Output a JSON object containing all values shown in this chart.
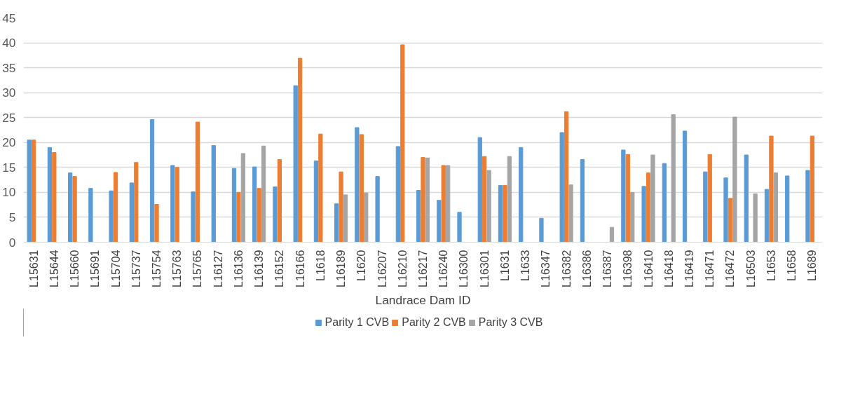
{
  "chart_data": {
    "type": "bar",
    "xlabel": "Landrace Dam ID",
    "categories": [
      "L15631",
      "L15644",
      "L15660",
      "L15691",
      "L15704",
      "L15737",
      "L15754",
      "L15763",
      "L15765",
      "L16127",
      "L16136",
      "L16139",
      "L16152",
      "L16166",
      "L1618",
      "L16189",
      "L1620",
      "L16207",
      "L16210",
      "L16217",
      "L16240",
      "L16300",
      "L16301",
      "L1631",
      "L1633",
      "L16347",
      "L16382",
      "L16386",
      "L16387",
      "L16398",
      "L16410",
      "L16418",
      "L16419",
      "L16471",
      "L16472",
      "L16503",
      "L1653",
      "L1658",
      "L1689"
    ],
    "series": [
      {
        "name": "Parity 1 CVB",
        "color": "#5b9bd5",
        "values": [
          20.5,
          19,
          13.9,
          10.8,
          10.3,
          11.9,
          24.6,
          15.4,
          10.1,
          19.4,
          14.8,
          15.1,
          11.1,
          31.4,
          16.3,
          7.7,
          23,
          13.2,
          19.2,
          10.4,
          8.4,
          6,
          21,
          11.4,
          19,
          4.8,
          22,
          16.6,
          null,
          18.5,
          11.2,
          15.8,
          22.3,
          14.1,
          12.9,
          17.5,
          10.6,
          13.3,
          14.4
        ]
      },
      {
        "name": "Parity 2 CVB",
        "color": "#ed7d31",
        "values": [
          20.5,
          18,
          13.2,
          null,
          14,
          16,
          7.6,
          15,
          24.1,
          null,
          10,
          10.8,
          16.6,
          36.9,
          21.7,
          14.1,
          21.6,
          null,
          39.6,
          17,
          15.4,
          null,
          17.2,
          11.4,
          null,
          null,
          26.2,
          null,
          null,
          17.6,
          13.9,
          null,
          null,
          17.6,
          8.8,
          null,
          21.3,
          null,
          21.3
        ]
      },
      {
        "name": "Parity 3 CVB",
        "color": "#a5a5a5",
        "values": [
          null,
          null,
          null,
          null,
          null,
          null,
          null,
          null,
          null,
          null,
          17.8,
          19.3,
          null,
          null,
          null,
          9.5,
          9.9,
          null,
          null,
          16.9,
          15.4,
          null,
          14.4,
          17.2,
          null,
          null,
          11.5,
          null,
          3,
          10,
          17.5,
          25.6,
          null,
          null,
          25.1,
          9.7,
          13.9,
          null,
          null
        ]
      }
    ],
    "ylim": [
      0,
      45
    ],
    "yticks": [
      0,
      5,
      10,
      15,
      20,
      25,
      30,
      35,
      40,
      45
    ],
    "grid": "y",
    "legend": "bottom"
  }
}
